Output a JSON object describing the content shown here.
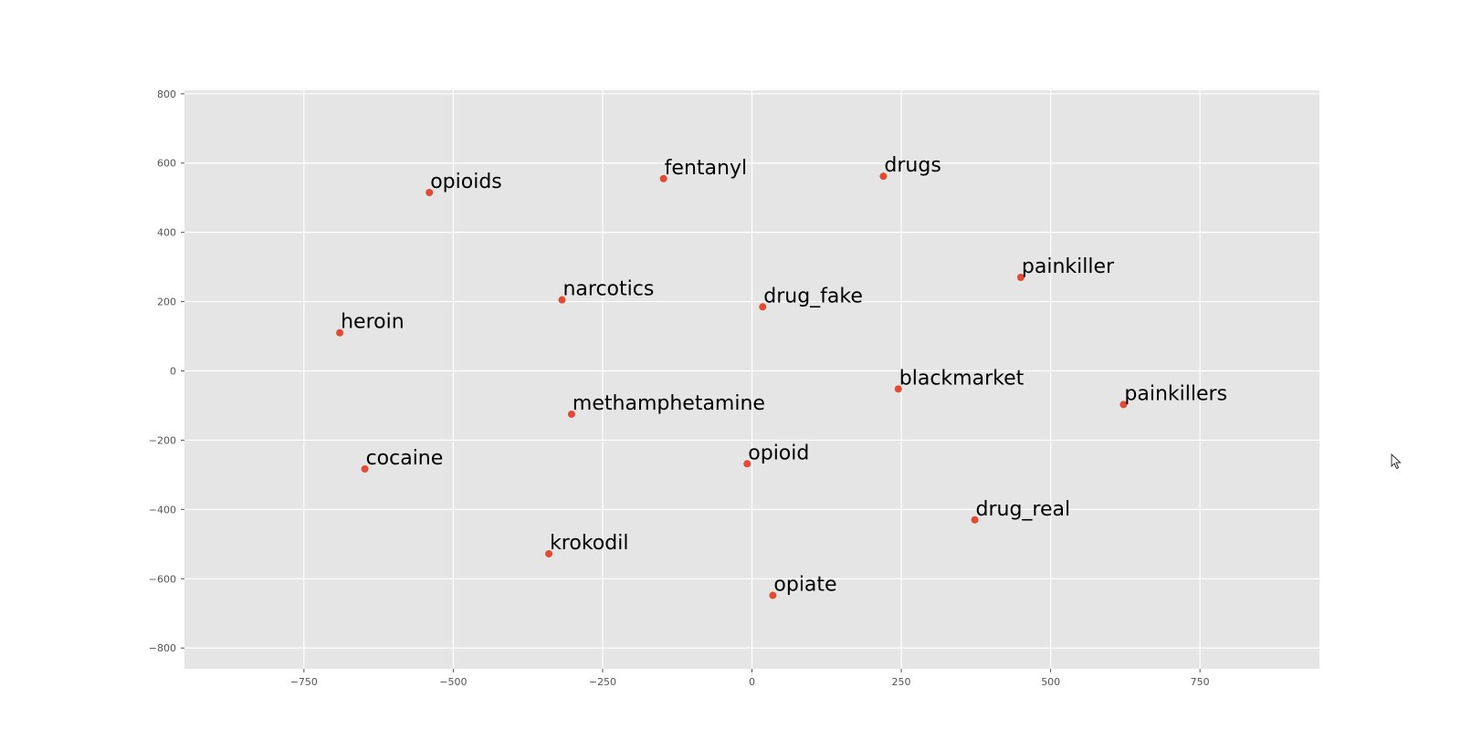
{
  "chart_data": {
    "type": "scatter",
    "title": "",
    "xlabel": "",
    "ylabel": "",
    "xlim": [
      -950,
      950
    ],
    "ylim": [
      -860,
      810
    ],
    "grid": true,
    "marker_color": "#E24A33",
    "background_color": "#E5E5E5",
    "grid_color": "#FFFFFF",
    "x_ticks": [
      {
        "value": -750,
        "label": "−750"
      },
      {
        "value": -500,
        "label": "−500"
      },
      {
        "value": -250,
        "label": "−250"
      },
      {
        "value": 0,
        "label": "0"
      },
      {
        "value": 250,
        "label": "250"
      },
      {
        "value": 500,
        "label": "500"
      },
      {
        "value": 750,
        "label": "750"
      }
    ],
    "y_ticks": [
      {
        "value": 800,
        "label": "800"
      },
      {
        "value": 600,
        "label": "600"
      },
      {
        "value": 400,
        "label": "400"
      },
      {
        "value": 200,
        "label": "200"
      },
      {
        "value": 0,
        "label": "0"
      },
      {
        "value": -200,
        "label": "−200"
      },
      {
        "value": -400,
        "label": "−400"
      },
      {
        "value": -600,
        "label": "−600"
      },
      {
        "value": -800,
        "label": "−800"
      }
    ],
    "points": [
      {
        "label": "opioids",
        "x": -540,
        "y": 515
      },
      {
        "label": "fentanyl",
        "x": -148,
        "y": 555
      },
      {
        "label": "drugs",
        "x": 220,
        "y": 562
      },
      {
        "label": "painkiller",
        "x": 450,
        "y": 270
      },
      {
        "label": "narcotics",
        "x": -318,
        "y": 205
      },
      {
        "label": "drug_fake",
        "x": 18,
        "y": 185
      },
      {
        "label": "heroin",
        "x": -690,
        "y": 110
      },
      {
        "label": "blackmarket",
        "x": 245,
        "y": -52
      },
      {
        "label": "painkillers",
        "x": 622,
        "y": -97
      },
      {
        "label": "methamphetamine",
        "x": -302,
        "y": -125
      },
      {
        "label": "cocaine",
        "x": -648,
        "y": -283
      },
      {
        "label": "opioid",
        "x": -8,
        "y": -268
      },
      {
        "label": "drug_real",
        "x": 373,
        "y": -430
      },
      {
        "label": "krokodil",
        "x": -340,
        "y": -528
      },
      {
        "label": "opiate",
        "x": 35,
        "y": -648
      }
    ]
  }
}
